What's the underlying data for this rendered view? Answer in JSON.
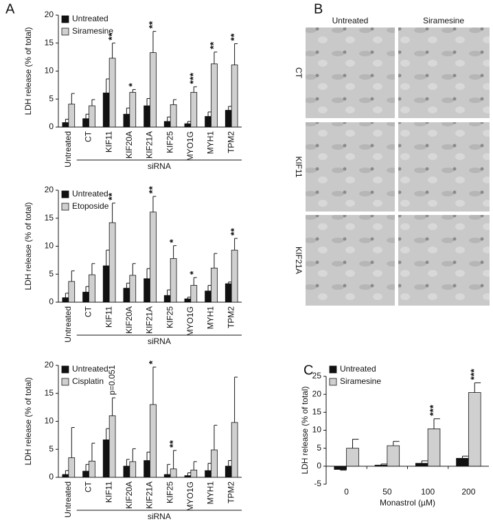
{
  "panel_labels": [
    "A",
    "B",
    "C"
  ],
  "micrographs": {
    "columns": [
      "Untreated",
      "Siramesine"
    ],
    "rows": [
      "CT",
      "KIF11",
      "KIF21A"
    ]
  },
  "chart_data": [
    {
      "type": "bar",
      "y_label": "LDH release (% of total)",
      "group_label": "siRNA",
      "categories": [
        "Untreated",
        "CT",
        "KIF11",
        "KIF20A",
        "KIF21A",
        "KIF25",
        "MYO1G",
        "MYH1",
        "TPM2"
      ],
      "ylim": [
        0,
        20
      ],
      "yticks": [
        0,
        5,
        10,
        15,
        20
      ],
      "series": [
        {
          "name": "Untreated",
          "color": "#111111",
          "values": [
            0.8,
            1.5,
            6.1,
            2.3,
            3.8,
            1.0,
            0.6,
            1.9,
            3.0
          ],
          "errors": [
            0.6,
            0.8,
            2.5,
            1.1,
            1.3,
            0.8,
            0.4,
            0.8,
            0.7
          ]
        },
        {
          "name": "Siramesine",
          "color": "#d0d0d0",
          "values": [
            4.1,
            3.8,
            12.3,
            6.2,
            13.3,
            4.0,
            6.2,
            11.3,
            11.1
          ],
          "errors": [
            1.9,
            1.1,
            2.7,
            0.5,
            3.8,
            0.9,
            1.0,
            2.1,
            3.8
          ],
          "annotations": [
            null,
            null,
            "**",
            "*",
            "**",
            null,
            "***",
            "**",
            "**"
          ]
        }
      ]
    },
    {
      "type": "bar",
      "y_label": "LDH release (% of total)",
      "group_label": "siRNA",
      "categories": [
        "Untreated",
        "CT",
        "KIF11",
        "KIF20A",
        "KIF21A",
        "KIF25",
        "MYO1G",
        "MYH1",
        "TPM2"
      ],
      "ylim": [
        0,
        20
      ],
      "yticks": [
        0,
        5,
        10,
        15,
        20
      ],
      "series": [
        {
          "name": "Untreated",
          "color": "#111111",
          "values": [
            0.8,
            1.8,
            6.5,
            2.5,
            4.2,
            1.2,
            0.6,
            2.0,
            3.3
          ],
          "errors": [
            0.8,
            1.0,
            2.8,
            0.9,
            1.8,
            1.0,
            0.3,
            1.0,
            0.3
          ]
        },
        {
          "name": "Etoposide",
          "color": "#d0d0d0",
          "values": [
            3.7,
            4.9,
            14.2,
            4.8,
            16.1,
            7.8,
            3.0,
            6.1,
            9.3
          ],
          "errors": [
            1.9,
            2.0,
            3.5,
            2.1,
            2.8,
            2.3,
            1.4,
            2.6,
            2.1
          ],
          "annotations": [
            null,
            null,
            "**",
            null,
            "**",
            "*",
            "*",
            null,
            "**"
          ]
        }
      ]
    },
    {
      "type": "bar",
      "y_label": "LDH release (% of total)",
      "group_label": "siRNA",
      "categories": [
        "Untreated",
        "CT",
        "KIF11",
        "KIF20A",
        "KIF21A",
        "KIF25",
        "MYO1G",
        "MYH1",
        "TPM2"
      ],
      "ylim": [
        0,
        20
      ],
      "yticks": [
        0,
        5,
        10,
        15,
        20
      ],
      "series": [
        {
          "name": "Untreated",
          "color": "#111111",
          "values": [
            0.5,
            1.1,
            6.7,
            2.0,
            3.0,
            0.5,
            0.3,
            1.2,
            2.0
          ],
          "errors": [
            0.7,
            1.2,
            2.0,
            1.2,
            1.5,
            1.8,
            0.5,
            1.3,
            1.0
          ]
        },
        {
          "name": "Cisplatin",
          "color": "#d0d0d0",
          "values": [
            3.5,
            2.9,
            11.0,
            2.8,
            13.0,
            1.5,
            1.3,
            4.9,
            9.8
          ],
          "errors": [
            5.4,
            3.2,
            3.2,
            2.3,
            6.7,
            3.3,
            1.5,
            4.4,
            8.1
          ],
          "annotations": [
            null,
            null,
            "p=0.051",
            null,
            "*",
            "**",
            null,
            null,
            null
          ]
        }
      ]
    },
    {
      "type": "bar",
      "y_label": "LDH release (% of total)",
      "x_label": "Monastrol (µM)",
      "categories": [
        "0",
        "50",
        "100",
        "200"
      ],
      "ylim": [
        -5,
        25
      ],
      "yticks": [
        -5,
        0,
        5,
        10,
        15,
        20,
        25
      ],
      "series": [
        {
          "name": "Untreated",
          "color": "#111111",
          "values": [
            -0.9,
            0.3,
            0.8,
            2.2
          ],
          "errors": [
            0.2,
            0.3,
            0.7,
            0.6
          ]
        },
        {
          "name": "Siramesine",
          "color": "#d0d0d0",
          "values": [
            5.0,
            5.7,
            10.4,
            20.5
          ],
          "errors": [
            2.5,
            1.2,
            2.8,
            2.7
          ],
          "annotations": [
            null,
            null,
            "***",
            "***"
          ]
        }
      ]
    }
  ]
}
